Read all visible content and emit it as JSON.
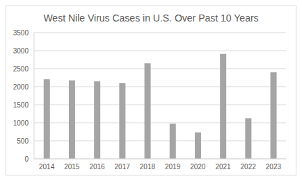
{
  "chart_data": {
    "type": "bar",
    "title": "West Nile Virus Cases in U.S. Over Past 10 Years",
    "categories": [
      "2014",
      "2015",
      "2016",
      "2017",
      "2018",
      "2019",
      "2020",
      "2021",
      "2022",
      "2023"
    ],
    "values": [
      2205,
      2175,
      2150,
      2097,
      2647,
      971,
      731,
      2911,
      1126,
      2400
    ],
    "color": "#a5a5a5",
    "ylim": [
      0,
      3500
    ],
    "yticks": [
      0,
      500,
      1000,
      1500,
      2000,
      2500,
      3000,
      3500
    ],
    "grid": true
  }
}
